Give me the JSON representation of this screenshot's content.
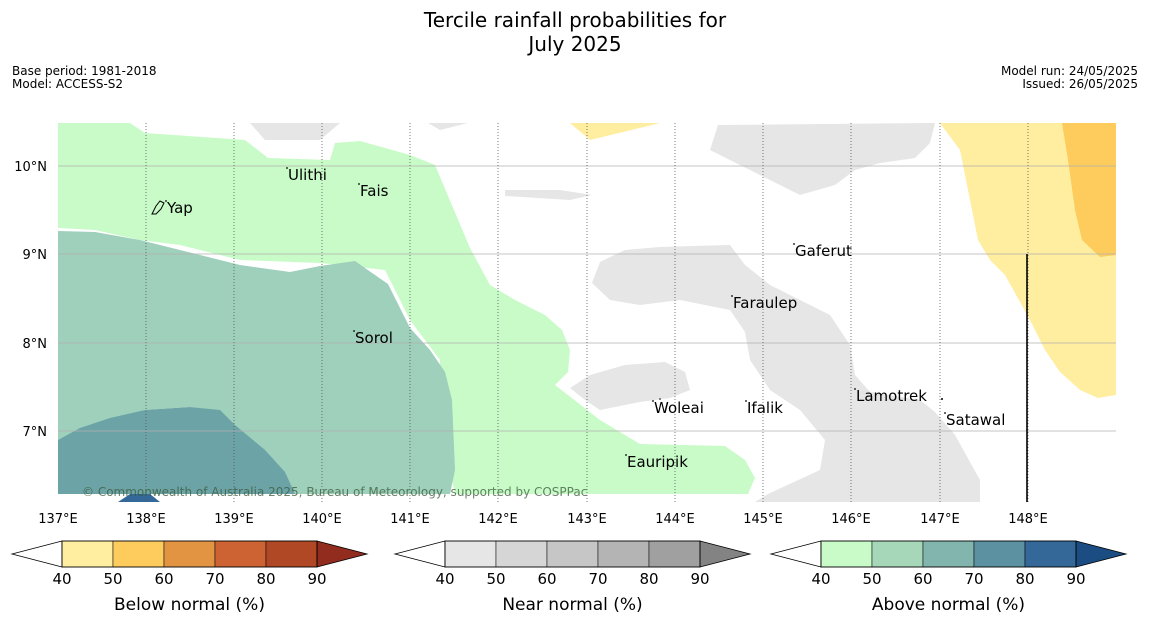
{
  "title": {
    "line1": "Tercile rainfall probabilities for",
    "line2": "July 2025"
  },
  "meta": {
    "base_period": "Base period: 1981-2018",
    "model": "Model: ACCESS-S2",
    "model_run": "Model run: 24/05/2025",
    "issued": "Issued: 26/05/2025"
  },
  "map": {
    "lon_labels": [
      "137°E",
      "138°E",
      "139°E",
      "140°E",
      "141°E",
      "142°E",
      "143°E",
      "144°E",
      "145°E",
      "146°E",
      "147°E",
      "148°E"
    ],
    "lat_labels": [
      "10°N",
      "9°N",
      "8°N",
      "7°N"
    ],
    "places": [
      {
        "name": "Ulithi"
      },
      {
        "name": "Fais"
      },
      {
        "name": "Yap"
      },
      {
        "name": "Gaferut"
      },
      {
        "name": "Faraulep"
      },
      {
        "name": "Sorol"
      },
      {
        "name": "Lamotrek"
      },
      {
        "name": "Woleai"
      },
      {
        "name": "Ifalik"
      },
      {
        "name": "Satawal"
      },
      {
        "name": "Eauripik"
      }
    ],
    "copyright": "© Commonwealth of Australia 2025, Bureau of Meteorology, supported by COSPPac"
  },
  "legends": [
    {
      "label": "Below normal (%)",
      "ticks": [
        "40",
        "50",
        "60",
        "70",
        "80",
        "90"
      ],
      "colors": [
        "#ffffff",
        "#ffeda0",
        "#fecc5c",
        "#e39443",
        "#cd6232",
        "#b04826",
        "#922c1e"
      ]
    },
    {
      "label": "Near normal (%)",
      "ticks": [
        "40",
        "50",
        "60",
        "70",
        "80",
        "90"
      ],
      "colors": [
        "#ffffff",
        "#e6e6e6",
        "#d6d6d6",
        "#c6c6c6",
        "#b4b4b4",
        "#a0a0a0",
        "#838383"
      ]
    },
    {
      "label": "Above normal (%)",
      "ticks": [
        "40",
        "50",
        "60",
        "70",
        "80",
        "90"
      ],
      "colors": [
        "#ffffff",
        "#c8fbc8",
        "#a5d7b8",
        "#82b5ad",
        "#5b91a0",
        "#336899",
        "#1b4c82"
      ]
    }
  ]
}
